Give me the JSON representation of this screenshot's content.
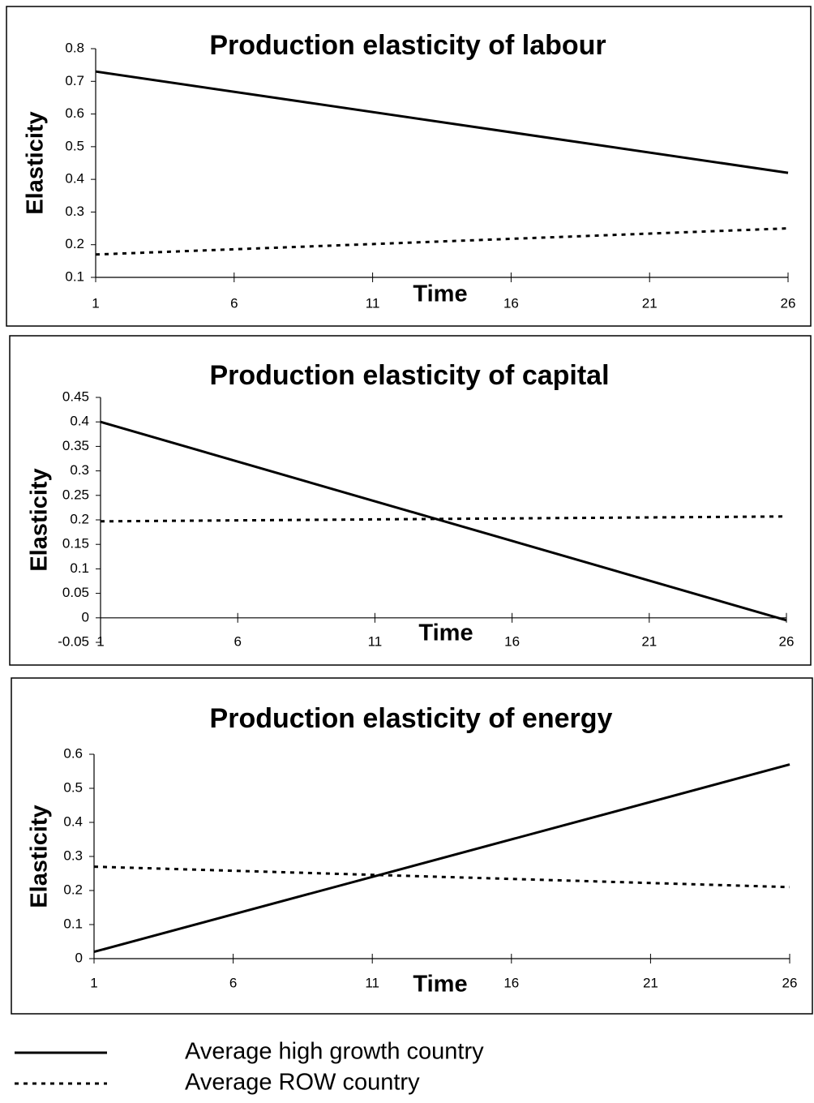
{
  "chart_data": [
    {
      "type": "line",
      "title": "Production elasticity of labour",
      "xlabel": "Time",
      "ylabel": "Elasticity",
      "x": [
        1,
        26
      ],
      "xlim": [
        1,
        26
      ],
      "xticks": [
        1,
        6,
        11,
        16,
        21,
        26
      ],
      "ylim": [
        0.1,
        0.8
      ],
      "yticks": [
        0.1,
        0.2,
        0.3,
        0.4,
        0.5,
        0.6,
        0.7,
        0.8
      ],
      "series": [
        {
          "color": "#000000",
          "dash": "solid",
          "values": [
            0.73,
            0.42
          ]
        },
        {
          "color": "#000000",
          "dash": "dotted",
          "values": [
            0.17,
            0.25
          ]
        }
      ]
    },
    {
      "type": "line",
      "title": "Production elasticity of capital",
      "xlabel": "Time",
      "ylabel": "Elasticity",
      "x": [
        1,
        26
      ],
      "xlim": [
        1,
        26
      ],
      "xticks": [
        1,
        6,
        11,
        16,
        21,
        26
      ],
      "ylim": [
        -0.05,
        0.45
      ],
      "yticks": [
        -0.05,
        0,
        0.05,
        0.1,
        0.15,
        0.2,
        0.25,
        0.3,
        0.35,
        0.4,
        0.45
      ],
      "series": [
        {
          "color": "#000000",
          "dash": "solid",
          "values": [
            0.4,
            -0.005
          ]
        },
        {
          "color": "#000000",
          "dash": "dotted",
          "values": [
            0.197,
            0.207
          ]
        }
      ]
    },
    {
      "type": "line",
      "title": "Production elasticity of energy",
      "xlabel": "Time",
      "ylabel": "Elasticity",
      "x": [
        1,
        26
      ],
      "xlim": [
        1,
        26
      ],
      "xticks": [
        1,
        6,
        11,
        16,
        21,
        26
      ],
      "ylim": [
        0,
        0.6
      ],
      "yticks": [
        0,
        0.1,
        0.2,
        0.3,
        0.4,
        0.5,
        0.6
      ],
      "series": [
        {
          "color": "#000000",
          "dash": "solid",
          "values": [
            0.02,
            0.57
          ]
        },
        {
          "color": "#000000",
          "dash": "dotted",
          "values": [
            0.27,
            0.21
          ]
        }
      ]
    }
  ],
  "legend": [
    "Average high growth country",
    "Average ROW country"
  ]
}
